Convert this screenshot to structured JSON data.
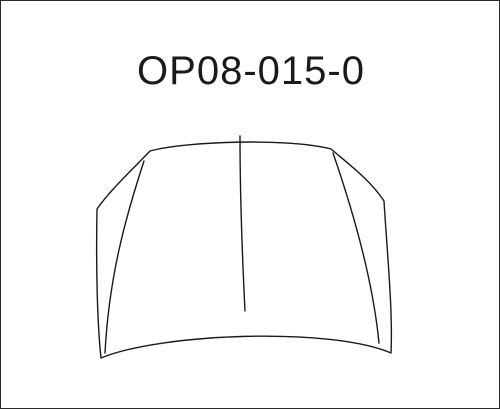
{
  "part_code": "OP08-015-0",
  "drawing": {
    "subject": "hood-panel-outline",
    "stroke_color": "#1a1a1a",
    "background_color": "#ffffff"
  }
}
